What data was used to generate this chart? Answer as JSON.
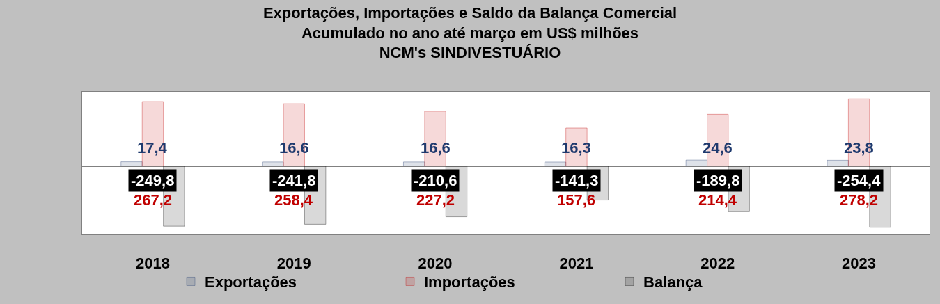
{
  "chart_data": {
    "type": "bar",
    "title": "Exportações, Importações e Saldo da Balança Comercial\nAcumulado no ano até março em US$ milhões\nNCM's SINDIVESTUÁRIO",
    "categories": [
      "2018",
      "2019",
      "2020",
      "2021",
      "2022",
      "2023"
    ],
    "series": [
      {
        "name": "Exportações",
        "color": "#1f3a6e",
        "values": [
          17.4,
          16.6,
          16.6,
          16.3,
          24.6,
          23.8
        ],
        "value_labels": [
          "17,4",
          "16,6",
          "16,6",
          "16,3",
          "24,6",
          "23,8"
        ]
      },
      {
        "name": "Importações",
        "color": "#c00000",
        "values": [
          267.2,
          258.4,
          227.2,
          157.6,
          214.4,
          278.2
        ],
        "value_labels": [
          "267,2",
          "258,4",
          "227,2",
          "157,6",
          "214,4",
          "278,2"
        ]
      },
      {
        "name": "Balança",
        "color": "#000000",
        "values": [
          -249.8,
          -241.8,
          -210.6,
          -141.3,
          -189.8,
          -254.4
        ],
        "value_labels": [
          "-249,8",
          "-241,8",
          "-210,6",
          "-141,3",
          "-189,8",
          "-254,4"
        ]
      }
    ],
    "tick_labels": "x",
    "legend": "bottom"
  }
}
